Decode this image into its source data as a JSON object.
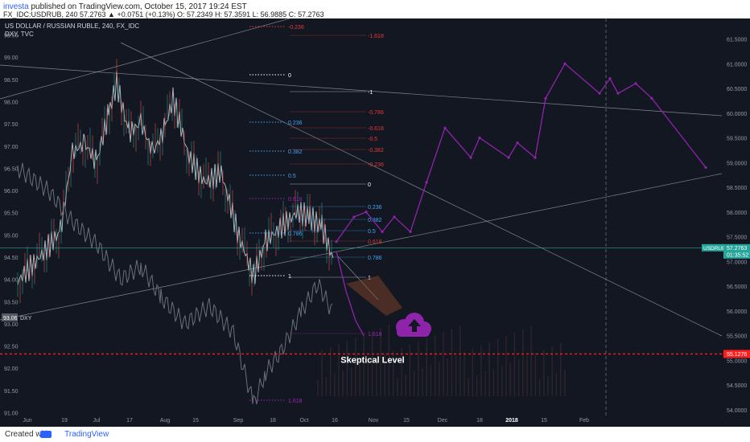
{
  "header": {
    "author": "investa",
    "published_text": "published on TradingView.com, October 15, 2017 19:24 EST",
    "quote_line": "FX_IDC:USDRUB, 240 57.2763 ▲ +0.0751 (+0.13%) O: 57.2349 H: 57.3591 L: 56.9885 C: 57.2763"
  },
  "footer": {
    "created_with": "Created with",
    "brand": "TradingView"
  },
  "chart_data": {
    "type": "line",
    "title": "US DOLLAR / RUSSIAN RUBLE, 240, FX_IDC",
    "subtitle": "DXY, TVC",
    "x_ticks": [
      "Jun",
      "19",
      "Jul",
      "17",
      "Aug",
      "15",
      "Sep",
      "18",
      "Oct",
      "16",
      "Nov",
      "15",
      "Dec",
      "18",
      "2018",
      "15",
      "Feb"
    ],
    "left_axis": {
      "ticks": [
        "99.50",
        "99.00",
        "98.50",
        "98.00",
        "97.50",
        "97.00",
        "96.50",
        "96.00",
        "95.50",
        "95.00",
        "94.50",
        "94.00",
        "93.50",
        "93.00",
        "92.50",
        "92.00",
        "91.50",
        "91.00"
      ],
      "ylim": [
        90.9,
        99.8
      ]
    },
    "right_axis": {
      "ticks": [
        "61.5000",
        "61.0000",
        "60.5000",
        "60.0000",
        "59.5000",
        "59.0000",
        "58.5000",
        "58.0000",
        "57.5000",
        "57.0000",
        "56.5000",
        "56.0000",
        "55.5000",
        "55.0000",
        "54.5000",
        "54.0000"
      ],
      "ylim": [
        53.85,
        61.85
      ]
    },
    "last_price": {
      "label": "USDRUB",
      "value": "57.2763",
      "countdown": "01:35:52",
      "color": "#26a69a"
    },
    "dxy_label": {
      "value": "93.06",
      "name": "DXY"
    },
    "skeptical_level": {
      "value": "55.1276",
      "label": "Skeptical Level",
      "color": "#ff1e1e"
    },
    "fib_levels": [
      {
        "label": "-0.236",
        "color": "#e53935"
      },
      {
        "label": "-1.618",
        "color": "#e53935"
      },
      {
        "label": "0",
        "color": "#ffffff"
      },
      {
        "label": "-1",
        "color": "#ffffff"
      },
      {
        "label": "-0.786",
        "color": "#e53935"
      },
      {
        "label": "0.236",
        "color": "#42a5f5"
      },
      {
        "label": "-0.618",
        "color": "#e53935"
      },
      {
        "label": "-0.5",
        "color": "#e53935"
      },
      {
        "label": "0.382",
        "color": "#42a5f5"
      },
      {
        "label": "-0.382",
        "color": "#e53935"
      },
      {
        "label": "-0.236",
        "color": "#e53935"
      },
      {
        "label": "0.5",
        "color": "#42a5f5"
      },
      {
        "label": "0",
        "color": "#ffffff"
      },
      {
        "label": "0.618",
        "color": "#9c27b0"
      },
      {
        "label": "0.236",
        "color": "#42a5f5"
      },
      {
        "label": "0.382",
        "color": "#42a5f5"
      },
      {
        "label": "0.786",
        "color": "#42a5f5"
      },
      {
        "label": "0.5",
        "color": "#42a5f5"
      },
      {
        "label": "0.618",
        "color": "#e53935"
      },
      {
        "label": "0.786",
        "color": "#42a5f5"
      },
      {
        "label": "1",
        "color": "#ffffff"
      },
      {
        "label": "1",
        "color": "#ffffff"
      },
      {
        "label": "1.618",
        "color": "#9c27b0"
      },
      {
        "label": "1.618",
        "color": "#9c27b0"
      }
    ],
    "projection_path": [
      {
        "x": "Oct 18",
        "y": 57.4
      },
      {
        "x": "Oct 24",
        "y": 57.9
      },
      {
        "x": "Oct 27",
        "y": 58.0
      },
      {
        "x": "Nov 1",
        "y": 57.6
      },
      {
        "x": "Nov 8",
        "y": 57.9
      },
      {
        "x": "Nov 15",
        "y": 57.6
      },
      {
        "x": "Nov 25",
        "y": 58.6
      },
      {
        "x": "Dec 10",
        "y": 59.7
      },
      {
        "x": "Dec 18",
        "y": 59.1
      },
      {
        "x": "Dec 28",
        "y": 59.5
      },
      {
        "x": "Jan 5",
        "y": 59.1
      },
      {
        "x": "Jan 12",
        "y": 59.4
      },
      {
        "x": "Jan 20",
        "y": 59.1
      },
      {
        "x": "Feb 1",
        "y": 60.3
      },
      {
        "x": "Feb 10",
        "y": 61.0
      },
      {
        "x": "Feb 18",
        "y": 60.4
      },
      {
        "x": "Feb 25",
        "y": 60.7
      },
      {
        "x": "Mar 3",
        "y": 60.4
      },
      {
        "x": "Mar 10",
        "y": 60.6
      },
      {
        "x": "Mar 15",
        "y": 60.3
      },
      {
        "x": "Mar 25",
        "y": 58.9
      }
    ],
    "colors": {
      "background": "#131722",
      "usdrub": "#b0b4bc",
      "dxy": "#6b6f78",
      "projection": "#8e24aa",
      "trendlines": "#9aa0a8"
    },
    "grid": false
  }
}
